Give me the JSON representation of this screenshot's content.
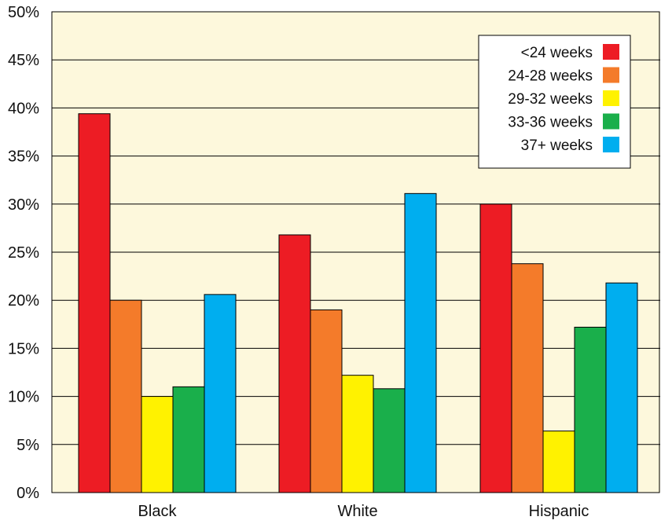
{
  "chart_data": {
    "type": "bar",
    "categories": [
      "Black",
      "White",
      "Hispanic"
    ],
    "series": [
      {
        "name": "<24 weeks",
        "color": "#ed1c24",
        "values": [
          39.4,
          26.8,
          30.0
        ]
      },
      {
        "name": "24-28 weeks",
        "color": "#f47b2a",
        "values": [
          20.0,
          19.0,
          23.8
        ]
      },
      {
        "name": "29-32 weeks",
        "color": "#fff200",
        "values": [
          10.0,
          12.2,
          6.4
        ]
      },
      {
        "name": "33-36 weeks",
        "color": "#1aaf4b",
        "values": [
          11.0,
          10.8,
          17.2
        ]
      },
      {
        "name": "37+ weeks",
        "color": "#00aeef",
        "values": [
          20.6,
          31.1,
          21.8
        ]
      }
    ],
    "ylim": [
      0,
      50
    ],
    "yticks": [
      0,
      5,
      10,
      15,
      20,
      25,
      30,
      35,
      40,
      45,
      50
    ],
    "ytick_labels": [
      "0%",
      "5%",
      "10%",
      "15%",
      "20%",
      "25%",
      "30%",
      "35%",
      "40%",
      "45%",
      "50%"
    ],
    "title": "",
    "xlabel": "",
    "ylabel": "",
    "grid": "horizontal",
    "legend_position": "top-right",
    "plot_background": "#fdf8dc"
  }
}
